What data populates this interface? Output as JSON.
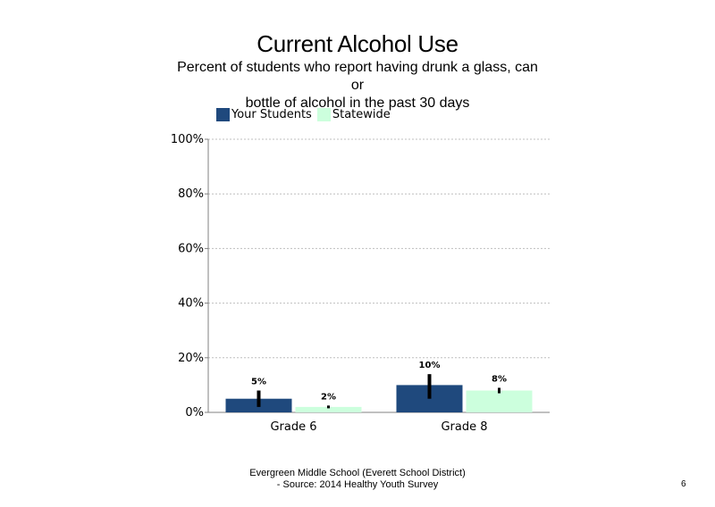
{
  "title": "Current Alcohol Use",
  "subtitle_lines": [
    "Percent of students  who report having drunk a glass, can",
    "or",
    "bottle  of alcohol  in the  past  30 days"
  ],
  "footer_lines": [
    "Evergreen Middle  School (Everett School District)",
    "- Source: 2014 Healthy  Youth Survey"
  ],
  "page_number": "6",
  "colors": {
    "your_students": "#1f497d",
    "statewide": "#ccffdd",
    "error_bar": "#000000",
    "grid": "#bfbfbf"
  },
  "chart_data": {
    "type": "bar",
    "title": "Current Alcohol Use",
    "categories": [
      "Grade 6",
      "Grade 8"
    ],
    "series": [
      {
        "name": "Your Students",
        "values": [
          5,
          10
        ],
        "labels": [
          "5%",
          "10%"
        ],
        "error": [
          [
            2,
            8
          ],
          [
            5,
            14
          ]
        ]
      },
      {
        "name": "Statewide",
        "values": [
          2,
          8
        ],
        "labels": [
          "2%",
          "8%"
        ],
        "error": [
          [
            1.5,
            2.5
          ],
          [
            7,
            9
          ]
        ]
      }
    ],
    "ylim": [
      0,
      100
    ],
    "yticks": [
      0,
      20,
      40,
      60,
      80,
      100
    ],
    "ytick_labels": [
      "0%",
      "20%",
      "40%",
      "60%",
      "80%",
      "100%"
    ],
    "grid": true,
    "legend_position": "top-left"
  }
}
